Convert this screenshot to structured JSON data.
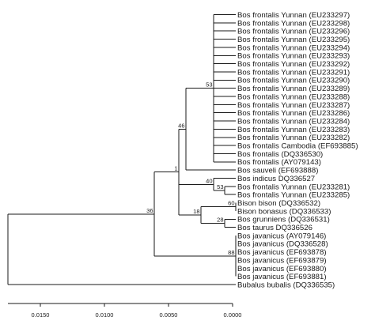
{
  "figure": {
    "tree": {
      "id": "root",
      "children": [
        {
          "id": "n36",
          "bootstrap": "36",
          "children": [
            {
              "id": "n1",
              "bootstrap": "1",
              "children": [
                {
                  "id": "n46",
                  "bootstrap": "46",
                  "children": [
                    {
                      "id": "n53a",
                      "bootstrap": "53",
                      "children": [
                        {
                          "label": "Bos frontalis Yunnan (EU233297)"
                        },
                        {
                          "label": "Bos frontalis Yunnan (EU233298)"
                        },
                        {
                          "label": "Bos frontalis Yunnan (EU233296)"
                        },
                        {
                          "label": "Bos frontalis Yunnan (EU233295)"
                        },
                        {
                          "label": "Bos frontalis Yunnan (EU233294)"
                        },
                        {
                          "label": "Bos frontalis Yunnan (EU233293)"
                        },
                        {
                          "label": "Bos frontalis Yunnan (EU233292)"
                        },
                        {
                          "label": "Bos frontalis Yunnan (EU233291)"
                        },
                        {
                          "label": "Bos frontalis Yunnan (EU233290)"
                        },
                        {
                          "label": "Bos frontalis Yunnan (EU233289)"
                        },
                        {
                          "label": "Bos frontalis Yunnan (EU233288)"
                        },
                        {
                          "label": "Bos frontalis Yunnan (EU233287)"
                        },
                        {
                          "label": "Bos frontalis Yunnan (EU233286)"
                        },
                        {
                          "label": "Bos frontalis Yunnan (EU233284)"
                        },
                        {
                          "label": "Bos frontalis Yunnan (EU233283)"
                        },
                        {
                          "label": "Bos frontalis Yunnan (EU233282)"
                        },
                        {
                          "label": "Bos frontalis Cambodia (EF693885)"
                        },
                        {
                          "label": "Bos frontalis (DQ336530)"
                        },
                        {
                          "label": "Bos frontalis (AY079143)"
                        }
                      ]
                    },
                    {
                      "label": "Bos sauveli (EF693888)"
                    }
                  ]
                },
                {
                  "id": "n40",
                  "bootstrap": "40",
                  "children": [
                    {
                      "label": "Bos indicus DQ336527"
                    },
                    {
                      "id": "n53b",
                      "bootstrap": "53",
                      "children": [
                        {
                          "label": "Bos frontalis Yunnan (EU233281)"
                        },
                        {
                          "label": "Bos frontalis Yunnan (EU233285)"
                        }
                      ]
                    }
                  ]
                },
                {
                  "id": "n18",
                  "bootstrap": "18",
                  "children": [
                    {
                      "id": "n60",
                      "bootstrap": "60",
                      "children": [
                        {
                          "label": "Bison bison (DQ336532)"
                        },
                        {
                          "label": "Bison bonasus (DQ336533)"
                        }
                      ]
                    },
                    {
                      "id": "n28",
                      "bootstrap": "28",
                      "children": [
                        {
                          "label": "Bos grunniens (DQ336531)"
                        },
                        {
                          "label": "Bos taurus DQ336526"
                        }
                      ]
                    }
                  ]
                }
              ]
            },
            {
              "id": "n88",
              "bootstrap": "88",
              "children": [
                {
                  "label": "Bos javanicus (AY079146)"
                },
                {
                  "label": "Bos javanicus (DQ336528)"
                },
                {
                  "label": "Bos javanicus (EF693878)"
                },
                {
                  "label": "Bos javanicus (EF693879)"
                },
                {
                  "label": "Bos javanicus (EF693880)"
                },
                {
                  "label": "Bos javanicus (EF693881)"
                }
              ]
            }
          ]
        },
        {
          "label": "Bubalus bubalis (DQ336535)"
        }
      ]
    },
    "scale_axis": {
      "ticks": [
        {
          "value": 0.015,
          "label": "0.0150"
        },
        {
          "value": 0.01,
          "label": "0.0100"
        },
        {
          "value": 0.005,
          "label": "0.0050"
        },
        {
          "value": 0.0,
          "label": "0.0000"
        }
      ]
    }
  }
}
